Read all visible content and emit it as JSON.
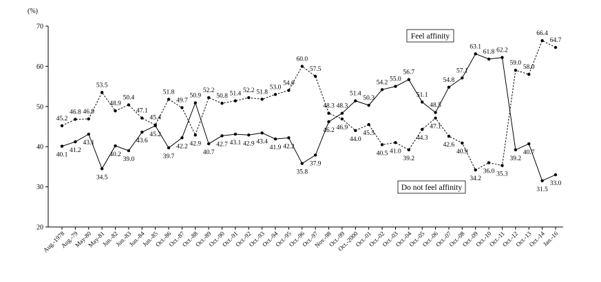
{
  "chart_data": {
    "type": "line",
    "unit_label": "(%)",
    "ylim": [
      20,
      70
    ],
    "yticks": [
      20,
      30,
      40,
      50,
      60,
      70
    ],
    "grid": false,
    "categories": [
      "Aug.-1978",
      "Aug.-79",
      "May-80",
      "May-81",
      "Jun.-82",
      "Jun.-83",
      "Jun.-84",
      "Jun.-85",
      "Oct.-86",
      "Oct.-87",
      "Oct.-88",
      "Oct.-89",
      "Oct.-90",
      "Oct.-91",
      "Oct.-92",
      "Oct.-93",
      "Oct.-94",
      "Oct.-95",
      "Oct.-96",
      "Oct.-97",
      "Nov.-98",
      "Oct.-99",
      "Oct.-2000",
      "Oct.-01",
      "Oct.-02",
      "Oct.-03",
      "Oct.-04",
      "Oct.-05",
      "Oct.-06",
      "Oct.-07",
      "Oct.-08",
      "Oct.-09",
      "Oct.-10",
      "Oct.-11",
      "Oct.-12",
      "Oct.-13",
      "Oct.-14",
      "Jan.-16"
    ],
    "series": [
      {
        "name": "Feel affinity",
        "style": "dashed",
        "values": [
          45.2,
          46.8,
          46.9,
          53.5,
          48.9,
          50.4,
          47.1,
          45.4,
          51.8,
          49.7,
          42.9,
          52.2,
          50.8,
          51.4,
          52.2,
          51.8,
          53.0,
          54.0,
          60.0,
          57.5,
          48.3,
          46.9,
          44.0,
          45.5,
          40.5,
          41.0,
          39.2,
          44.3,
          47.1,
          42.6,
          40.9,
          34.2,
          36.0,
          35.3,
          59.0,
          58.0,
          66.4,
          64.7
        ]
      },
      {
        "name": "Do not feel affinity",
        "style": "solid",
        "values": [
          40.1,
          41.2,
          43.1,
          34.5,
          40.2,
          39.0,
          43.6,
          45.2,
          39.7,
          42.2,
          50.9,
          40.7,
          42.7,
          43.1,
          42.9,
          43.4,
          41.9,
          42.2,
          35.8,
          37.9,
          46.2,
          48.3,
          51.4,
          50.3,
          54.2,
          55.0,
          56.7,
          51.1,
          48.5,
          54.8,
          57.1,
          63.1,
          61.8,
          62.2,
          39.2,
          40.7,
          31.5,
          33.0
        ]
      }
    ],
    "annotations": [
      {
        "text": "Feel affinity",
        "boxed": true
      },
      {
        "text": "Do not feel affinity",
        "boxed": true
      }
    ]
  }
}
